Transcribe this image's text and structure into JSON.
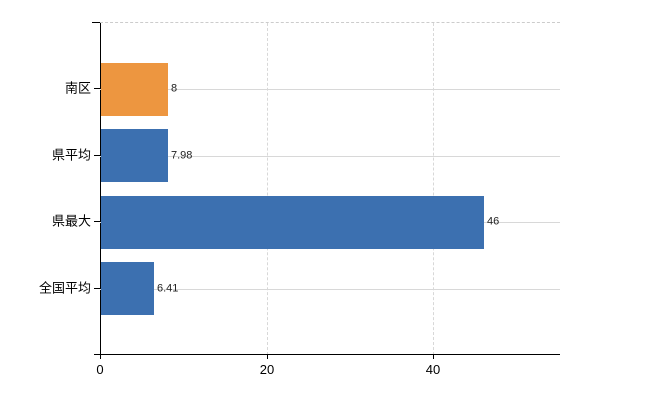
{
  "chart": {
    "background_color": "#ffffff",
    "axis_color": "#000000",
    "grid_color": "#d8d8d8",
    "top_border_color": "#cccccc",
    "text_color": "#000000",
    "value_label_color": "#222222"
  },
  "chart_data": {
    "type": "bar",
    "orientation": "horizontal",
    "title": "",
    "xlabel": "",
    "ylabel": "",
    "categories": [
      "南区",
      "県平均",
      "県最大",
      "全国平均"
    ],
    "values": [
      8,
      7.98,
      46,
      6.41
    ],
    "value_labels": [
      "8",
      "7.98",
      "46",
      "6.41"
    ],
    "bar_colors": [
      "#ed9640",
      "#3c70b0",
      "#3c70b0",
      "#3c70b0"
    ],
    "highlight_color": "#ed9640",
    "series_color": "#3c70b0",
    "x_ticks": [
      0,
      20,
      40
    ],
    "x_tick_labels": [
      "0",
      "20",
      "40"
    ],
    "xlim": [
      0,
      55.2
    ],
    "grid": "on",
    "legend": "none"
  }
}
